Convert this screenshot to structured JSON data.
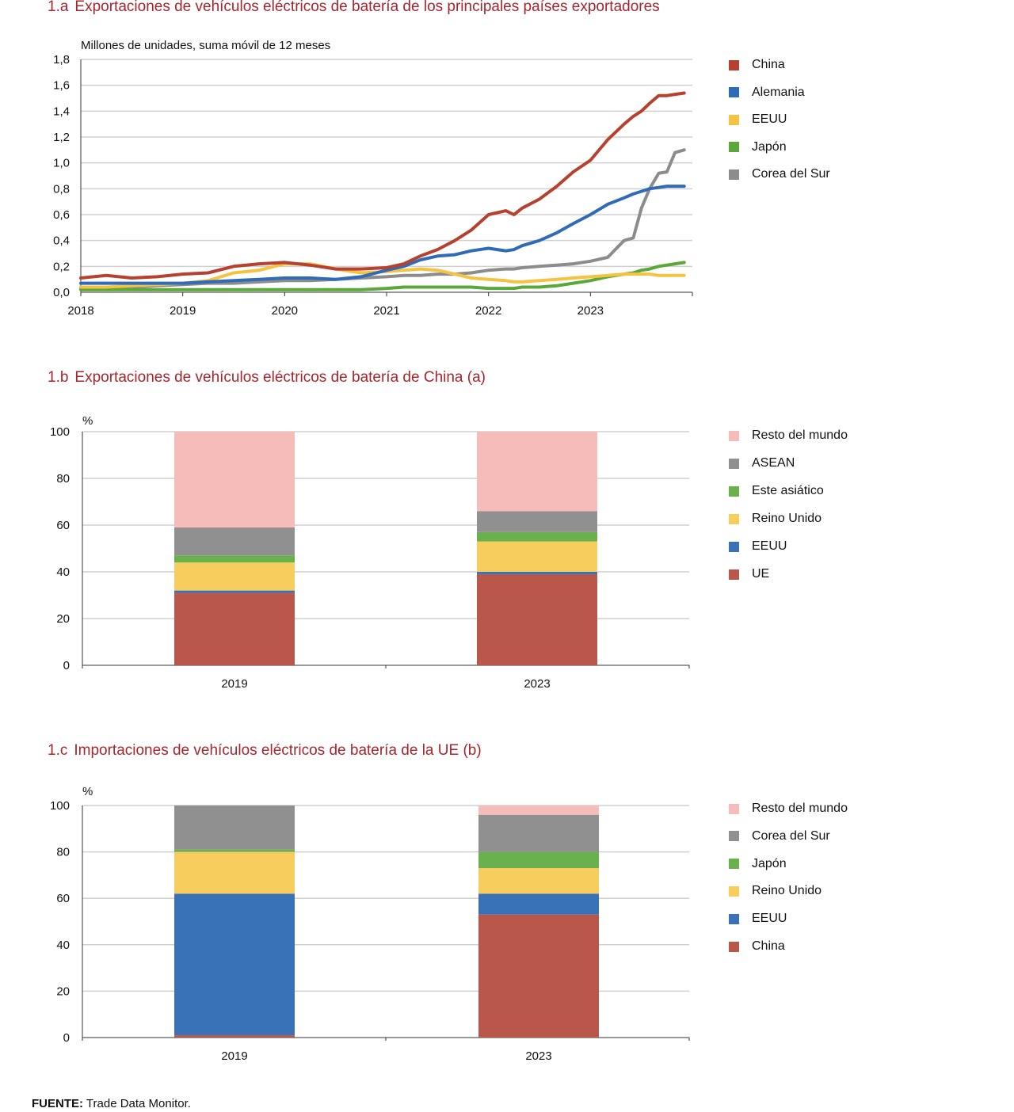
{
  "source": {
    "label": "FUENTE:",
    "text": "Trade Data Monitor."
  },
  "chart_data": [
    {
      "id": "1a",
      "type": "line",
      "number": "1.a",
      "title": "Exportaciones de vehículos eléctricos de batería de los principales países exportadores",
      "ylabel": "Millones de unidades, suma móvil de 12 meses",
      "xlim": [
        2018,
        2024
      ],
      "ylim": [
        0,
        1.8
      ],
      "yticks": [
        "0,0",
        "0,2",
        "0,4",
        "0,6",
        "0,8",
        "1,0",
        "1,2",
        "1,4",
        "1,6",
        "1,8"
      ],
      "xticks": [
        "2018",
        "2019",
        "2020",
        "2021",
        "2022",
        "2023"
      ],
      "grid": true,
      "legend_position": "right",
      "x": [
        2018.0,
        2018.25,
        2018.5,
        2018.75,
        2019.0,
        2019.25,
        2019.5,
        2019.75,
        2020.0,
        2020.25,
        2020.5,
        2020.75,
        2021.0,
        2021.17,
        2021.33,
        2021.5,
        2021.67,
        2021.83,
        2022.0,
        2022.17,
        2022.25,
        2022.33,
        2022.5,
        2022.67,
        2022.83,
        2023.0,
        2023.17,
        2023.33,
        2023.42,
        2023.5,
        2023.58,
        2023.67,
        2023.75,
        2023.83,
        2023.92
      ],
      "series": [
        {
          "name": "China",
          "color": "#b7412f",
          "values": [
            0.11,
            0.13,
            0.11,
            0.12,
            0.14,
            0.15,
            0.2,
            0.22,
            0.23,
            0.21,
            0.18,
            0.18,
            0.19,
            0.22,
            0.28,
            0.33,
            0.4,
            0.48,
            0.6,
            0.63,
            0.6,
            0.65,
            0.72,
            0.82,
            0.93,
            1.02,
            1.18,
            1.3,
            1.36,
            1.4,
            1.46,
            1.52,
            1.52,
            1.53,
            1.54
          ]
        },
        {
          "name": "Alemania",
          "color": "#2f6bb7",
          "values": [
            0.07,
            0.07,
            0.07,
            0.07,
            0.07,
            0.08,
            0.09,
            0.1,
            0.11,
            0.11,
            0.1,
            0.12,
            0.17,
            0.2,
            0.25,
            0.28,
            0.29,
            0.32,
            0.34,
            0.32,
            0.33,
            0.36,
            0.4,
            0.46,
            0.53,
            0.6,
            0.68,
            0.73,
            0.76,
            0.78,
            0.8,
            0.81,
            0.82,
            0.82,
            0.82
          ]
        },
        {
          "name": "EEUU",
          "color": "#f5c342",
          "values": [
            0.04,
            0.04,
            0.05,
            0.06,
            0.07,
            0.09,
            0.15,
            0.17,
            0.22,
            0.22,
            0.18,
            0.15,
            0.16,
            0.17,
            0.18,
            0.17,
            0.14,
            0.11,
            0.1,
            0.09,
            0.08,
            0.08,
            0.09,
            0.1,
            0.11,
            0.12,
            0.13,
            0.14,
            0.14,
            0.14,
            0.14,
            0.13,
            0.13,
            0.13,
            0.13
          ]
        },
        {
          "name": "Japón",
          "color": "#5aa83a",
          "values": [
            0.02,
            0.02,
            0.02,
            0.02,
            0.02,
            0.02,
            0.02,
            0.02,
            0.02,
            0.02,
            0.02,
            0.02,
            0.03,
            0.04,
            0.04,
            0.04,
            0.04,
            0.04,
            0.03,
            0.03,
            0.03,
            0.04,
            0.04,
            0.05,
            0.07,
            0.09,
            0.12,
            0.14,
            0.15,
            0.17,
            0.18,
            0.2,
            0.21,
            0.22,
            0.23
          ]
        },
        {
          "name": "Corea del Sur",
          "color": "#8c8c8c",
          "values": [
            0.03,
            0.03,
            0.04,
            0.05,
            0.06,
            0.07,
            0.07,
            0.08,
            0.09,
            0.09,
            0.1,
            0.11,
            0.12,
            0.13,
            0.13,
            0.14,
            0.14,
            0.15,
            0.17,
            0.18,
            0.18,
            0.19,
            0.2,
            0.21,
            0.22,
            0.24,
            0.27,
            0.4,
            0.42,
            0.65,
            0.8,
            0.92,
            0.93,
            1.08,
            1.1
          ]
        }
      ]
    },
    {
      "id": "1b",
      "type": "bar",
      "stacked": true,
      "number": "1.b",
      "title": "Exportaciones de vehículos eléctricos de batería de China (a)",
      "ylabel": "%",
      "ylim": [
        0,
        100
      ],
      "yticks": [
        "0",
        "20",
        "40",
        "60",
        "80",
        "100"
      ],
      "grid": true,
      "legend_position": "right",
      "categories": [
        "2019",
        "2023"
      ],
      "series": [
        {
          "name": "UE",
          "color": "#b9584a",
          "values": [
            31,
            39
          ]
        },
        {
          "name": "EEUU",
          "color": "#3a72b8",
          "values": [
            1,
            1
          ]
        },
        {
          "name": "Reino Unido",
          "color": "#f7cd5d",
          "values": [
            12,
            13
          ]
        },
        {
          "name": "Este asiático",
          "color": "#6ab04c",
          "values": [
            3,
            4
          ]
        },
        {
          "name": "ASEAN",
          "color": "#909090",
          "values": [
            12,
            9
          ]
        },
        {
          "name": "Resto del mundo",
          "color": "#f6bcb9",
          "values": [
            41,
            34
          ]
        }
      ]
    },
    {
      "id": "1c",
      "type": "bar",
      "stacked": true,
      "number": "1.c",
      "title": "Importaciones de vehículos eléctricos de batería de la UE (b)",
      "ylabel": "%",
      "ylim": [
        0,
        100
      ],
      "yticks": [
        "0",
        "20",
        "40",
        "60",
        "80",
        "100"
      ],
      "grid": true,
      "legend_position": "right",
      "categories": [
        "2019",
        "2023"
      ],
      "series": [
        {
          "name": "China",
          "color": "#b9584a",
          "values": [
            1,
            53
          ]
        },
        {
          "name": "EEUU",
          "color": "#3a72b8",
          "values": [
            61,
            9
          ]
        },
        {
          "name": "Reino Unido",
          "color": "#f7cd5d",
          "values": [
            18,
            11
          ]
        },
        {
          "name": "Japón",
          "color": "#6ab04c",
          "values": [
            1,
            7
          ]
        },
        {
          "name": "Corea del Sur",
          "color": "#909090",
          "values": [
            19,
            16
          ]
        },
        {
          "name": "Resto del mundo",
          "color": "#f6bcb9",
          "values": [
            0,
            4
          ]
        }
      ]
    }
  ]
}
